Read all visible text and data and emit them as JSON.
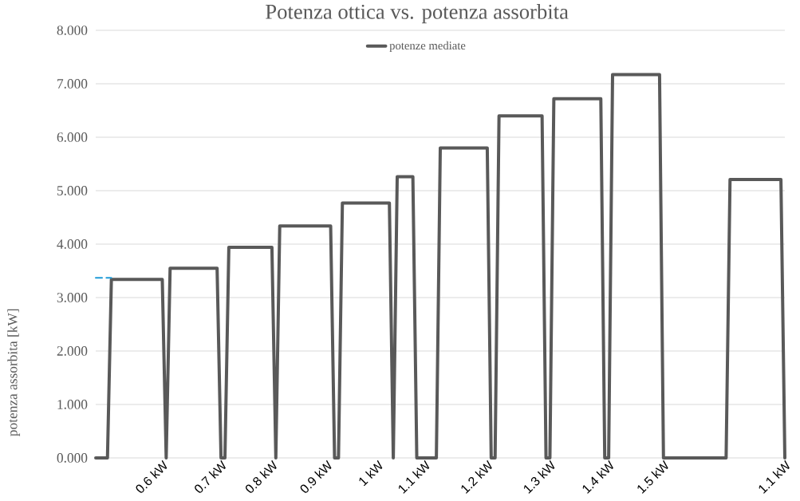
{
  "chart_data": {
    "type": "line",
    "title": "Potenza ottica vs. potenza assorbita",
    "ylabel": "potenza assorbita [kW]",
    "categories": [
      null,
      null,
      null,
      null,
      null,
      null,
      null,
      null,
      null,
      null,
      null,
      null,
      null,
      null,
      null,
      null,
      null,
      "0.6 kW",
      null,
      null,
      null,
      null,
      null,
      null,
      null,
      null,
      null,
      null,
      null,
      null,
      null,
      null,
      "0.7 kW",
      null,
      null,
      null,
      null,
      null,
      null,
      null,
      null,
      null,
      null,
      null,
      null,
      "0.8 kW",
      null,
      null,
      null,
      null,
      null,
      null,
      null,
      null,
      null,
      null,
      null,
      null,
      null,
      "0.9 kW",
      null,
      null,
      null,
      null,
      null,
      null,
      null,
      null,
      null,
      null,
      null,
      null,
      "1 kW",
      null,
      null,
      null,
      null,
      null,
      null,
      null,
      null,
      null,
      null,
      null,
      "1.1 kW",
      null,
      null,
      null,
      null,
      null,
      null,
      null,
      null,
      null,
      null,
      null,
      null,
      null,
      null,
      null,
      "1.2 kW",
      null,
      null,
      null,
      null,
      null,
      null,
      null,
      null,
      null,
      null,
      null,
      null,
      null,
      null,
      null,
      "1.3 kW",
      null,
      null,
      null,
      null,
      null,
      null,
      null,
      null,
      null,
      null,
      null,
      null,
      null,
      null,
      "1.4 kW",
      null,
      null,
      null,
      null,
      null,
      null,
      null,
      null,
      null,
      null,
      null,
      null,
      null,
      "1.5 kW",
      null,
      null,
      null,
      null,
      null,
      null,
      null,
      null,
      null,
      null,
      null,
      null,
      null,
      null,
      null,
      null,
      null,
      null,
      null,
      null,
      null,
      null,
      null,
      null,
      null,
      null,
      null,
      null,
      null,
      null,
      "1.1 kW"
    ],
    "series": [
      {
        "name": "potenze mediate",
        "color": "#595959",
        "values": [
          0,
          0,
          0,
          0,
          3.34,
          3.34,
          3.34,
          3.34,
          3.34,
          3.34,
          3.34,
          3.34,
          3.34,
          3.34,
          3.34,
          3.34,
          3.34,
          3.34,
          0,
          3.55,
          3.55,
          3.55,
          3.55,
          3.55,
          3.55,
          3.55,
          3.55,
          3.55,
          3.55,
          3.55,
          3.55,
          3.55,
          0,
          0,
          3.94,
          3.94,
          3.94,
          3.94,
          3.94,
          3.94,
          3.94,
          3.94,
          3.94,
          3.94,
          3.94,
          3.94,
          0,
          4.34,
          4.34,
          4.34,
          4.34,
          4.34,
          4.34,
          4.34,
          4.34,
          4.34,
          4.34,
          4.34,
          4.34,
          4.34,
          4.34,
          0,
          0,
          4.77,
          4.77,
          4.77,
          4.77,
          4.77,
          4.77,
          4.77,
          4.77,
          4.77,
          4.77,
          4.77,
          4.77,
          4.77,
          0,
          5.26,
          5.26,
          5.26,
          5.26,
          5.26,
          0,
          0,
          0,
          0,
          0,
          0,
          5.8,
          5.8,
          5.8,
          5.8,
          5.8,
          5.8,
          5.8,
          5.8,
          5.8,
          5.8,
          5.8,
          5.8,
          5.8,
          0,
          0,
          6.4,
          6.4,
          6.4,
          6.4,
          6.4,
          6.4,
          6.4,
          6.4,
          6.4,
          6.4,
          6.4,
          6.4,
          0,
          0,
          6.72,
          6.72,
          6.72,
          6.72,
          6.72,
          6.72,
          6.72,
          6.72,
          6.72,
          6.72,
          6.72,
          6.72,
          6.72,
          0,
          0,
          7.17,
          7.17,
          7.17,
          7.17,
          7.17,
          7.17,
          7.17,
          7.17,
          7.17,
          7.17,
          7.17,
          7.17,
          7.17,
          0,
          0,
          0,
          0,
          0,
          0,
          0,
          0,
          0,
          0,
          0,
          0,
          0,
          0,
          0,
          0,
          0,
          5.21,
          5.21,
          5.21,
          5.21,
          5.21,
          5.21,
          5.21,
          5.21,
          5.21,
          5.21,
          5.21,
          5.21,
          5.21,
          5.21,
          0
        ]
      },
      {
        "color": "#1f9bd7",
        "line_style": "dashed",
        "values": [
          3.37,
          3.37,
          3.37,
          3.37,
          3.37,
          null,
          null,
          null,
          null,
          null,
          null,
          null,
          null,
          null,
          null,
          null,
          null,
          null,
          null,
          null,
          null,
          null,
          null,
          null,
          null,
          null,
          null,
          null,
          null,
          null,
          null,
          null,
          null,
          null,
          null,
          null,
          null,
          null,
          null,
          null,
          null,
          null,
          null,
          null,
          null,
          null,
          null,
          null,
          null,
          null,
          null,
          null,
          null,
          null,
          null,
          null,
          null,
          null,
          null,
          null,
          null,
          null,
          null,
          null,
          null,
          null,
          null,
          null,
          null,
          null,
          null,
          null,
          null,
          null,
          null,
          null,
          null,
          null,
          null,
          null,
          null,
          null,
          null,
          null,
          null,
          null,
          null,
          null,
          null,
          null,
          null,
          null,
          null,
          null,
          null,
          null,
          null,
          null,
          null,
          null,
          null,
          null,
          null,
          null,
          null,
          null,
          null,
          null,
          null,
          null,
          null,
          null,
          null,
          null,
          null,
          null,
          null,
          null,
          null,
          null,
          null,
          null,
          null,
          null,
          null,
          null,
          null,
          null,
          null,
          null,
          null,
          null,
          null,
          null,
          null,
          null,
          null,
          null,
          null,
          null,
          null,
          null,
          null,
          null,
          null,
          null,
          null,
          null,
          null,
          null,
          null,
          null,
          null,
          null,
          null,
          null,
          null,
          null,
          null,
          null,
          null,
          null,
          null,
          null,
          null,
          null,
          null,
          null,
          null,
          null,
          null,
          null,
          null,
          null,
          null,
          null,
          null
        ]
      }
    ],
    "ylim": [
      0,
      8
    ],
    "yticks": [
      {
        "value": 0,
        "label": "0.000"
      },
      {
        "value": 1,
        "label": "1.000"
      },
      {
        "value": 2,
        "label": "2.000"
      },
      {
        "value": 3,
        "label": "3.000"
      },
      {
        "value": 4,
        "label": "4.000"
      },
      {
        "value": 5,
        "label": "5.000"
      },
      {
        "value": 6,
        "label": "6.000"
      },
      {
        "value": 7,
        "label": "7.000"
      },
      {
        "value": 8,
        "label": "8.000"
      }
    ],
    "grid": "y",
    "legend": "top"
  }
}
